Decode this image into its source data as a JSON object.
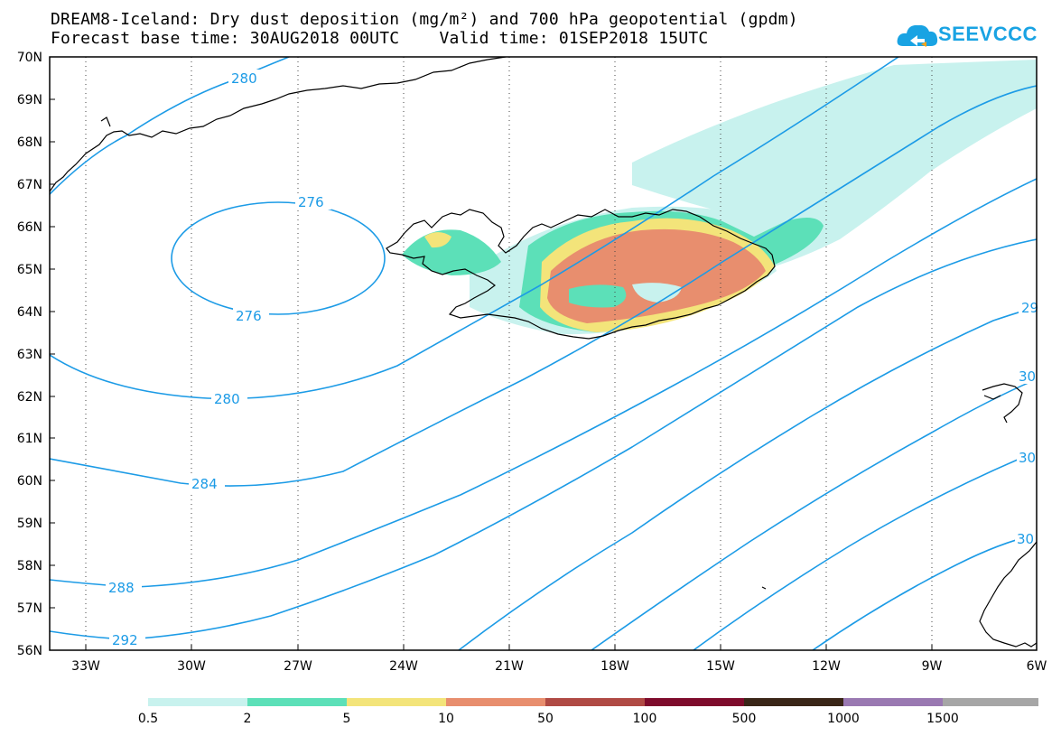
{
  "header": {
    "title_line1": "DREAM8-Iceland: Dry dust deposition (mg/m²) and 700 hPa geopotential (gpdm)",
    "title_line2": "Forecast base time: 30AUG2018 00UTC    Valid time: 01SEP2018 15UTC"
  },
  "logo": {
    "text": "SEEVCCC",
    "icon": "cloud-icon",
    "color": "#19a3e3"
  },
  "map": {
    "lat_labels": [
      "70N",
      "69N",
      "68N",
      "67N",
      "66N",
      "65N",
      "64N",
      "63N",
      "62N",
      "61N",
      "60N",
      "59N",
      "58N",
      "57N",
      "56N"
    ],
    "lon_labels": [
      "33W",
      "30W",
      "27W",
      "24W",
      "21W",
      "18W",
      "15W",
      "12W",
      "9W",
      "6W"
    ],
    "contour_labels": [
      "280",
      "276",
      "276",
      "280",
      "284",
      "288",
      "292",
      "29",
      "30",
      "30",
      "30"
    ],
    "contour_color": "#1c9be6"
  },
  "colorbar": {
    "ticks": [
      "0.5",
      "2",
      "5",
      "10",
      "50",
      "100",
      "500",
      "1000",
      "1500"
    ],
    "colors": [
      "#c8f2ee",
      "#5ce0b8",
      "#f3e47a",
      "#e88e6e",
      "#b04a44",
      "#7e0b2c",
      "#3a2618",
      "#9a79b2",
      "#a6a6a6"
    ]
  }
}
